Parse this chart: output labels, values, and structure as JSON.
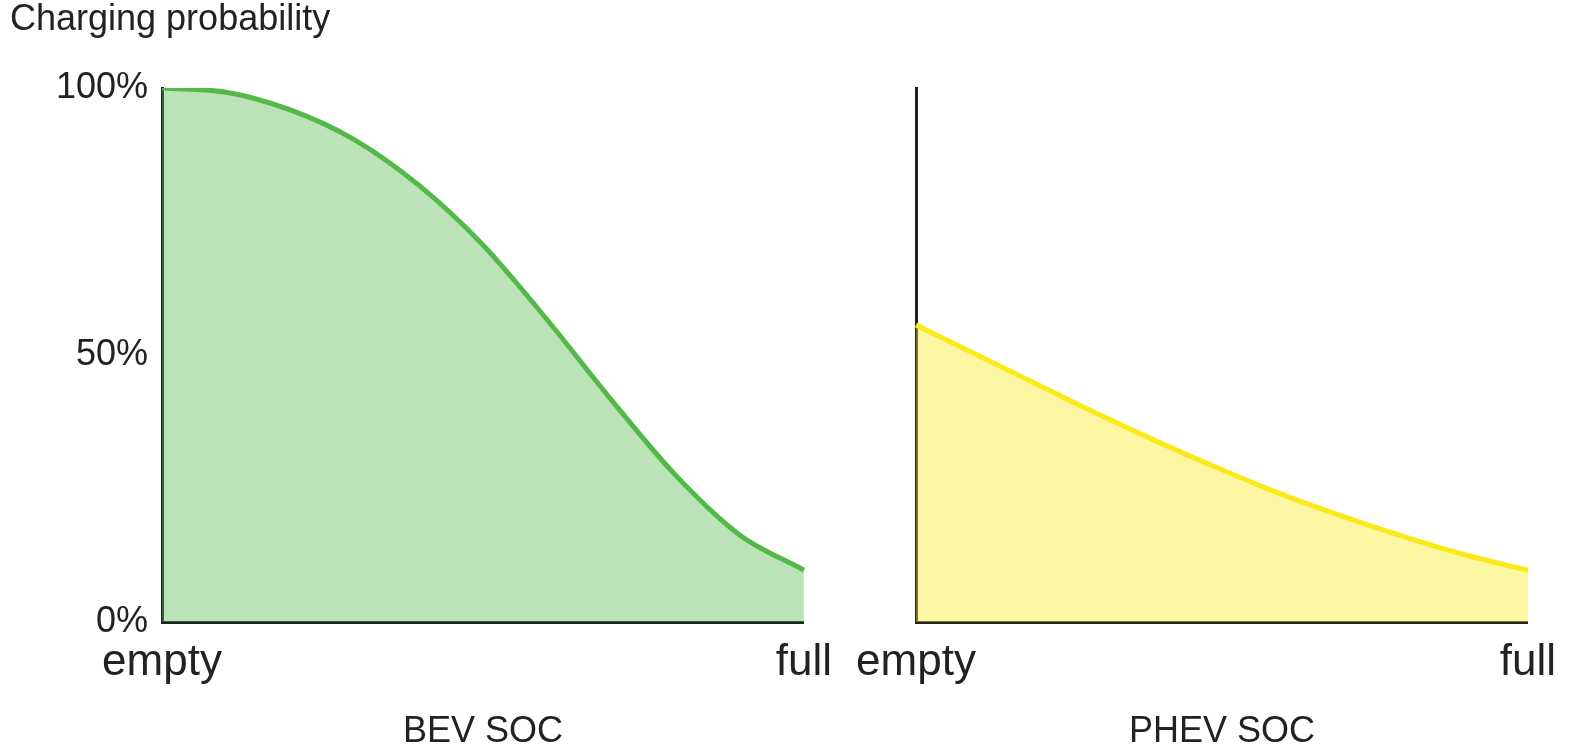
{
  "chart_data": [
    {
      "type": "area",
      "ylabel": "Charging probability",
      "xlabel": "BEV SOC",
      "categories": [
        "empty",
        null,
        null,
        null,
        null,
        null,
        null,
        null,
        null,
        null,
        "full"
      ],
      "ylim": [
        0,
        100
      ],
      "yticks": [
        {
          "value": 0,
          "label": "0%"
        },
        {
          "value": 50,
          "label": "50%"
        },
        {
          "value": 100,
          "label": "100%"
        }
      ],
      "grid": false,
      "series": [
        {
          "color": "#55b94a",
          "values": [
            100,
            99.2,
            95.9,
            90.3,
            81.8,
            70.6,
            56.6,
            41.6,
            27.5,
            16.3,
            9.7
          ]
        }
      ]
    },
    {
      "type": "area",
      "xlabel": "PHEV SOC",
      "categories": [
        "empty",
        null,
        null,
        null,
        null,
        null,
        null,
        null,
        null,
        null,
        "full"
      ],
      "ylim": [
        0,
        100
      ],
      "tick_labels": "x",
      "grid": false,
      "series": [
        {
          "color": "#fbe919",
          "values": [
            55.6,
            50,
            44.4,
            38.8,
            33.5,
            28.5,
            23.8,
            19.7,
            15.9,
            12.5,
            9.7
          ]
        }
      ]
    }
  ]
}
